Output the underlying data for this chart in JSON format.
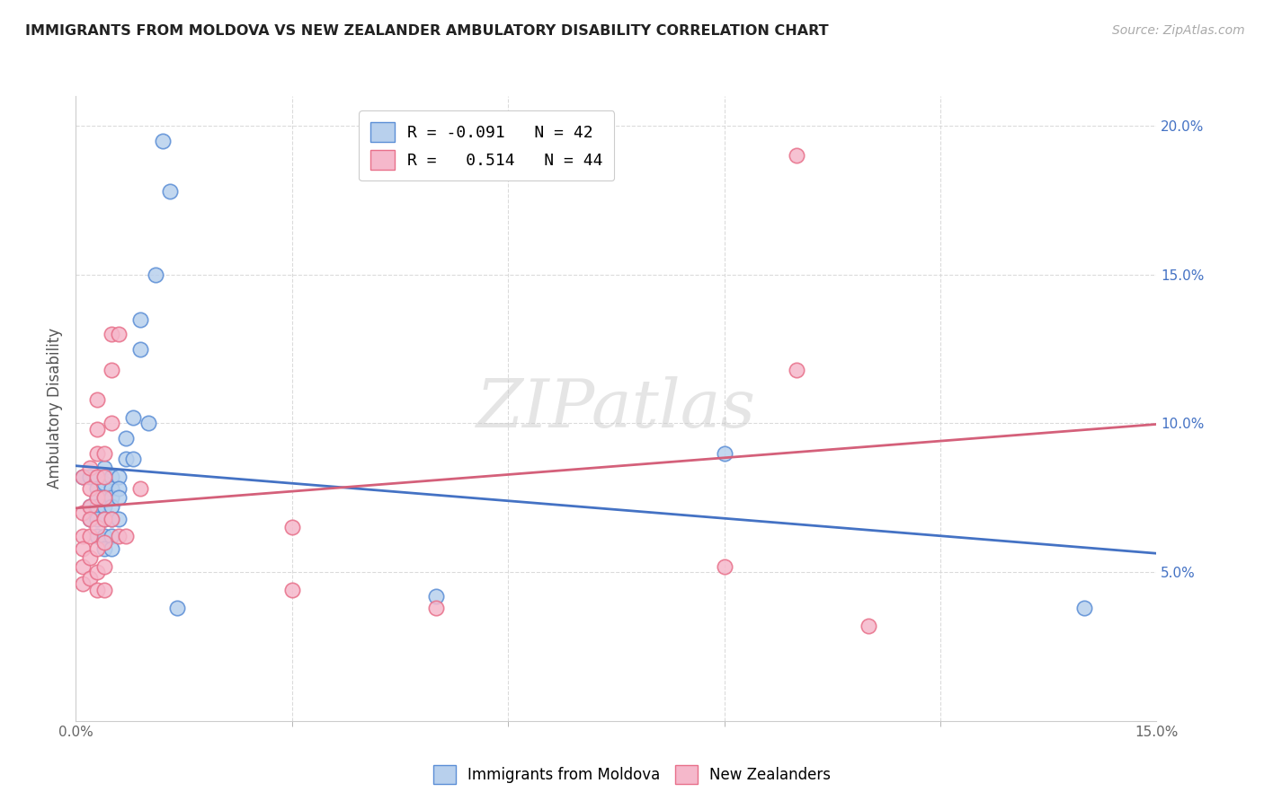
{
  "title": "IMMIGRANTS FROM MOLDOVA VS NEW ZEALANDER AMBULATORY DISABILITY CORRELATION CHART",
  "source": "Source: ZipAtlas.com",
  "ylabel": "Ambulatory Disability",
  "xlim": [
    0.0,
    0.15
  ],
  "ylim": [
    0.0,
    0.21
  ],
  "yticks": [
    0.05,
    0.1,
    0.15,
    0.2
  ],
  "ytick_labels": [
    "5.0%",
    "10.0%",
    "15.0%",
    "20.0%"
  ],
  "xtick_major": [
    0.0,
    0.15
  ],
  "xtick_minor": [
    0.03,
    0.06,
    0.09,
    0.12
  ],
  "xtick_major_labels": [
    "0.0%",
    "15.0%"
  ],
  "series1_label": "Immigrants from Moldova",
  "series2_label": "New Zealanders",
  "series1_color": "#b8d0ed",
  "series2_color": "#f5b8cb",
  "series1_edge_color": "#5b8ed6",
  "series2_edge_color": "#e8708a",
  "series1_line_color": "#4472c4",
  "series2_line_color": "#d4607a",
  "legend_line1": "R = -0.091   N = 42",
  "legend_line2": "R =   0.514   N = 44",
  "blue_points": [
    [
      0.001,
      0.082
    ],
    [
      0.002,
      0.082
    ],
    [
      0.002,
      0.072
    ],
    [
      0.002,
      0.068
    ],
    [
      0.003,
      0.082
    ],
    [
      0.003,
      0.078
    ],
    [
      0.003,
      0.075
    ],
    [
      0.003,
      0.072
    ],
    [
      0.003,
      0.068
    ],
    [
      0.003,
      0.062
    ],
    [
      0.004,
      0.085
    ],
    [
      0.004,
      0.08
    ],
    [
      0.004,
      0.075
    ],
    [
      0.004,
      0.072
    ],
    [
      0.004,
      0.068
    ],
    [
      0.004,
      0.062
    ],
    [
      0.004,
      0.058
    ],
    [
      0.005,
      0.082
    ],
    [
      0.005,
      0.078
    ],
    [
      0.005,
      0.075
    ],
    [
      0.005,
      0.072
    ],
    [
      0.005,
      0.068
    ],
    [
      0.005,
      0.062
    ],
    [
      0.005,
      0.058
    ],
    [
      0.006,
      0.082
    ],
    [
      0.006,
      0.078
    ],
    [
      0.006,
      0.075
    ],
    [
      0.006,
      0.068
    ],
    [
      0.007,
      0.095
    ],
    [
      0.007,
      0.088
    ],
    [
      0.008,
      0.102
    ],
    [
      0.008,
      0.088
    ],
    [
      0.009,
      0.135
    ],
    [
      0.009,
      0.125
    ],
    [
      0.01,
      0.1
    ],
    [
      0.011,
      0.15
    ],
    [
      0.012,
      0.195
    ],
    [
      0.013,
      0.178
    ],
    [
      0.014,
      0.038
    ],
    [
      0.05,
      0.042
    ],
    [
      0.09,
      0.09
    ],
    [
      0.14,
      0.038
    ]
  ],
  "pink_points": [
    [
      0.001,
      0.082
    ],
    [
      0.001,
      0.07
    ],
    [
      0.001,
      0.062
    ],
    [
      0.001,
      0.058
    ],
    [
      0.001,
      0.052
    ],
    [
      0.001,
      0.046
    ],
    [
      0.002,
      0.085
    ],
    [
      0.002,
      0.078
    ],
    [
      0.002,
      0.072
    ],
    [
      0.002,
      0.068
    ],
    [
      0.002,
      0.062
    ],
    [
      0.002,
      0.055
    ],
    [
      0.002,
      0.048
    ],
    [
      0.003,
      0.108
    ],
    [
      0.003,
      0.098
    ],
    [
      0.003,
      0.09
    ],
    [
      0.003,
      0.082
    ],
    [
      0.003,
      0.075
    ],
    [
      0.003,
      0.065
    ],
    [
      0.003,
      0.058
    ],
    [
      0.003,
      0.05
    ],
    [
      0.003,
      0.044
    ],
    [
      0.004,
      0.09
    ],
    [
      0.004,
      0.082
    ],
    [
      0.004,
      0.075
    ],
    [
      0.004,
      0.068
    ],
    [
      0.004,
      0.06
    ],
    [
      0.004,
      0.052
    ],
    [
      0.004,
      0.044
    ],
    [
      0.005,
      0.13
    ],
    [
      0.005,
      0.118
    ],
    [
      0.005,
      0.1
    ],
    [
      0.005,
      0.068
    ],
    [
      0.006,
      0.13
    ],
    [
      0.006,
      0.062
    ],
    [
      0.007,
      0.062
    ],
    [
      0.009,
      0.078
    ],
    [
      0.03,
      0.065
    ],
    [
      0.03,
      0.044
    ],
    [
      0.05,
      0.038
    ],
    [
      0.09,
      0.052
    ],
    [
      0.1,
      0.19
    ],
    [
      0.1,
      0.118
    ],
    [
      0.11,
      0.032
    ]
  ],
  "watermark": "ZIPatlas",
  "background_color": "#ffffff",
  "grid_color": "#d8d8d8"
}
